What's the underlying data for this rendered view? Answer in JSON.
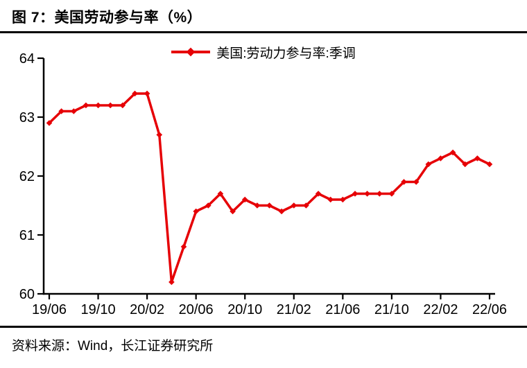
{
  "figure": {
    "title": "图 7：美国劳动参与率（%）",
    "source": "资料来源：Wind，长江证券研究所"
  },
  "legend": {
    "label": "美国:劳动力参与率:季调"
  },
  "colors": {
    "line": "#e60006",
    "axis": "#000000",
    "text": "#000000",
    "rule": "#000000"
  },
  "chart_data": {
    "type": "line",
    "title": "图 7：美国劳动参与率（%）",
    "xlabel": "",
    "ylabel": "",
    "grid": false,
    "legend_position": "top-center",
    "marker": "diamond",
    "ylim": [
      60,
      64
    ],
    "y_ticks": [
      60,
      61,
      62,
      63,
      64
    ],
    "x_tick_labels": [
      "19/06",
      "19/10",
      "20/02",
      "20/06",
      "20/10",
      "21/02",
      "21/06",
      "21/10",
      "22/02",
      "22/06"
    ],
    "x": [
      "19/06",
      "19/07",
      "19/08",
      "19/09",
      "19/10",
      "19/11",
      "19/12",
      "20/01",
      "20/02",
      "20/03",
      "20/04",
      "20/05",
      "20/06",
      "20/07",
      "20/08",
      "20/09",
      "20/10",
      "20/11",
      "20/12",
      "21/01",
      "21/02",
      "21/03",
      "21/04",
      "21/05",
      "21/06",
      "21/07",
      "21/08",
      "21/09",
      "21/10",
      "21/11",
      "21/12",
      "22/01",
      "22/02",
      "22/03",
      "22/04",
      "22/05",
      "22/06"
    ],
    "series": [
      {
        "name": "美国:劳动力参与率:季调",
        "values": [
          62.9,
          63.1,
          63.1,
          63.2,
          63.2,
          63.2,
          63.2,
          63.4,
          63.4,
          62.7,
          60.2,
          60.8,
          61.4,
          61.5,
          61.7,
          61.4,
          61.6,
          61.5,
          61.5,
          61.4,
          61.5,
          61.5,
          61.7,
          61.6,
          61.6,
          61.7,
          61.7,
          61.7,
          61.7,
          61.9,
          61.9,
          62.2,
          62.3,
          62.4,
          62.2,
          62.3,
          62.2
        ]
      }
    ]
  }
}
